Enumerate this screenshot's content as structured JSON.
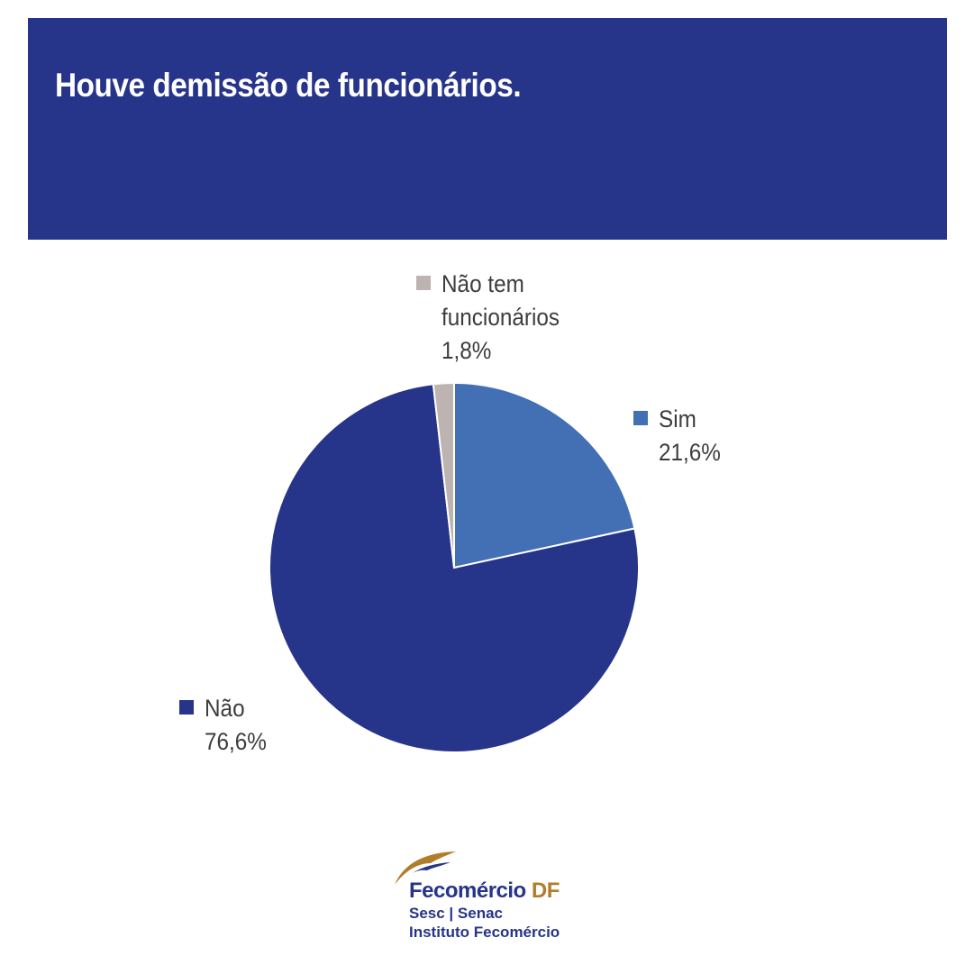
{
  "header": {
    "title": "Houve demissão de funcionários.",
    "background": "#263489"
  },
  "chart_data": {
    "type": "pie",
    "title": "Houve demissão de funcionários.",
    "start_angle_deg": -90,
    "direction": "clockwise",
    "slices": [
      {
        "label": "Sim",
        "value": 21.6,
        "value_label": "21,6%",
        "color": "#4370b5"
      },
      {
        "label": "Não",
        "value": 76.6,
        "value_label": "76,6%",
        "color": "#263489"
      },
      {
        "label": "Não tem funcionários",
        "label_lines": [
          "Não tem",
          "funcionários"
        ],
        "value": 1.8,
        "value_label": "1,8%",
        "color": "#bdb3b0"
      }
    ],
    "legend": "labels beside slices"
  },
  "legend": {
    "nao_tem": {
      "line1": "Não tem",
      "line2": "funcionários",
      "value": "1,8%",
      "color": "#bdb3b0"
    },
    "sim": {
      "line1": "Sim",
      "value": "21,6%",
      "color": "#4370b5"
    },
    "nao": {
      "line1": "Não",
      "value": "76,6%",
      "color": "#263489"
    }
  },
  "logo": {
    "brand_main": "Fecomércio",
    "brand_suffix": "DF",
    "line2": "Sesc | Senac",
    "line3": "Instituto Fecomércio",
    "brand_color": "#263489",
    "accent_color": "#b07d2b"
  }
}
